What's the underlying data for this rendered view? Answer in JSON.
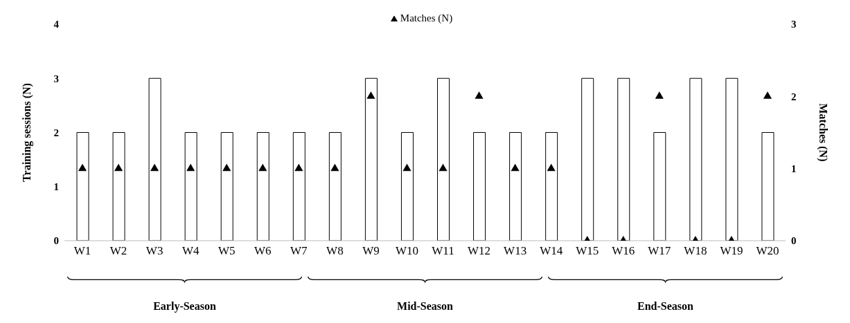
{
  "chart_data": {
    "type": "bar",
    "categories": [
      "W1",
      "W2",
      "W3",
      "W4",
      "W5",
      "W6",
      "W7",
      "W8",
      "W9",
      "W10",
      "W11",
      "W12",
      "W13",
      "W14",
      "W15",
      "W16",
      "W17",
      "W18",
      "W19",
      "W20"
    ],
    "series": [
      {
        "color": "#ffffff",
        "values": [
          2,
          2,
          3,
          2,
          2,
          2,
          2,
          2,
          3,
          2,
          3,
          2,
          2,
          2,
          3,
          3,
          2,
          3,
          3,
          2
        ]
      },
      {
        "name": "Matches (N)",
        "type": "scatter",
        "axis": "y2",
        "marker": "triangle",
        "color": "#000000",
        "values": [
          1,
          1,
          1,
          1,
          1,
          1,
          1,
          1,
          2,
          1,
          1,
          2,
          1,
          1,
          0,
          0,
          2,
          0,
          0,
          2
        ]
      }
    ],
    "ylabel": "Training sessions (N)",
    "y2label": "Matches (N)",
    "ylim": [
      0,
      4
    ],
    "yticks": [
      0,
      1,
      2,
      3,
      4
    ],
    "y2lim": [
      0,
      3
    ],
    "y2ticks": [
      0,
      1,
      2,
      3
    ],
    "legend": "top",
    "annotations": [
      "Early-Season",
      "Mid-Season",
      "End-Season"
    ]
  }
}
